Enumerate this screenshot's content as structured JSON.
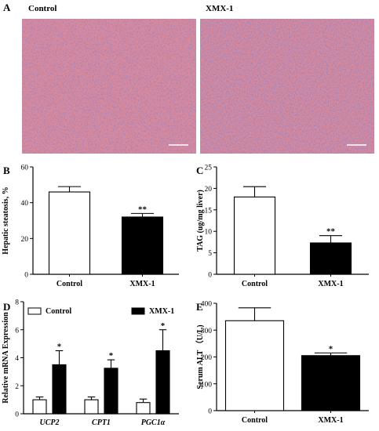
{
  "panel_a": {
    "letter": "A",
    "left_label": "Control",
    "right_label": "XMX-1",
    "tissue_color": "#d88a9c",
    "nuclei_color": "#5a3f7e"
  },
  "chart_data": [
    {
      "panel": "B",
      "type": "bar",
      "title": "",
      "xlabel": "",
      "ylabel": "Hepatic steatosis, %",
      "categories": [
        "Control",
        "XMX-1"
      ],
      "values": [
        46,
        32
      ],
      "errors": [
        3,
        2
      ],
      "fills": [
        "#ffffff",
        "#000000"
      ],
      "significance": [
        "",
        "**"
      ],
      "ylim": [
        0,
        60
      ],
      "yticks": [
        0,
        20,
        40,
        60
      ]
    },
    {
      "panel": "C",
      "type": "bar",
      "title": "",
      "xlabel": "",
      "ylabel": "TAG (ug/mg liver)",
      "categories": [
        "Control",
        "XMX-1"
      ],
      "values": [
        18,
        7.3
      ],
      "errors": [
        2.4,
        1.7
      ],
      "fills": [
        "#ffffff",
        "#000000"
      ],
      "significance": [
        "",
        "**"
      ],
      "ylim": [
        0,
        25
      ],
      "yticks": [
        0,
        5,
        10,
        15,
        20,
        25
      ]
    },
    {
      "panel": "D",
      "type": "bar",
      "title": "",
      "xlabel": "",
      "ylabel": "Relative mRNA Expression",
      "categories": [
        "UCP2",
        "CPT1",
        "PGC1α"
      ],
      "series": [
        {
          "name": "Control",
          "values": [
            1.0,
            1.0,
            0.8
          ],
          "errors": [
            0.2,
            0.2,
            0.25
          ],
          "fill": "#ffffff",
          "significance": [
            "",
            "",
            ""
          ]
        },
        {
          "name": "XMX-1",
          "values": [
            3.5,
            3.25,
            4.5
          ],
          "errors": [
            1.0,
            0.6,
            1.5
          ],
          "fill": "#000000",
          "significance": [
            "*",
            "*",
            "*"
          ]
        }
      ],
      "legend": "top",
      "ylim": [
        0,
        8
      ],
      "yticks": [
        0,
        2,
        4,
        6,
        8
      ]
    },
    {
      "panel": "E",
      "type": "bar",
      "title": "",
      "xlabel": "",
      "ylabel": "Serum ALT （U/L)",
      "categories": [
        "Control",
        "XMX-1"
      ],
      "values": [
        335,
        205
      ],
      "errors": [
        48,
        10
      ],
      "fills": [
        "#ffffff",
        "#000000"
      ],
      "significance": [
        "",
        "*"
      ],
      "ylim": [
        0,
        400
      ],
      "yticks": [
        0,
        100,
        200,
        300,
        400
      ]
    }
  ]
}
